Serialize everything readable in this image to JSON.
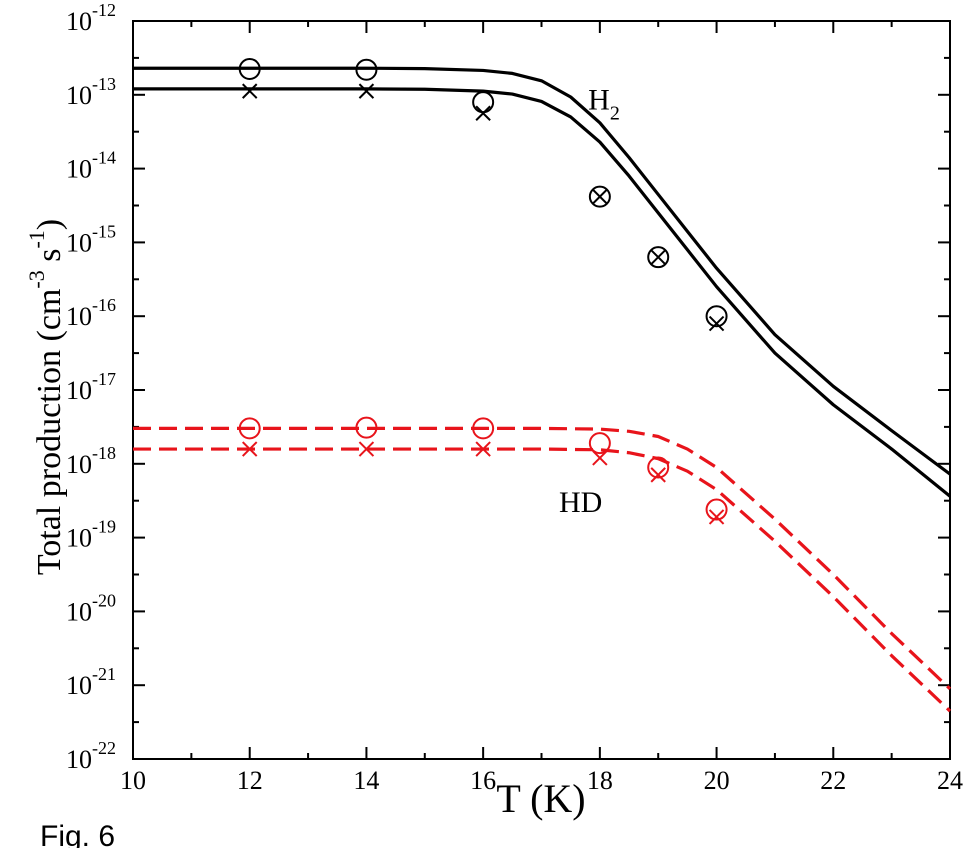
{
  "figure_label": "Fig. 6",
  "chart_data": {
    "type": "line",
    "xlabel": "T (K)",
    "ylabel": {
      "prefix": "Total production (cm",
      "exp1": "-3",
      "mid": " s",
      "exp2": "-1",
      "suffix": ")"
    },
    "x_ticks": [
      "10",
      "12",
      "14",
      "16",
      "18",
      "20",
      "22",
      "24"
    ],
    "xlim": [
      10,
      24
    ],
    "y_scale": "log",
    "y_ticks": [
      {
        "base": "10",
        "exp": "-12",
        "value": -12
      },
      {
        "base": "10",
        "exp": "-13",
        "value": -13
      },
      {
        "base": "10",
        "exp": "-14",
        "value": -14
      },
      {
        "base": "10",
        "exp": "-15",
        "value": -15
      },
      {
        "base": "10",
        "exp": "-16",
        "value": -16
      },
      {
        "base": "10",
        "exp": "-17",
        "value": -17
      },
      {
        "base": "10",
        "exp": "-18",
        "value": -18
      },
      {
        "base": "10",
        "exp": "-19",
        "value": -19
      },
      {
        "base": "10",
        "exp": "-20",
        "value": -20
      },
      {
        "base": "10",
        "exp": "-21",
        "value": -21
      },
      {
        "base": "10",
        "exp": "-22",
        "value": -22
      }
    ],
    "ylim_log10": [
      -22,
      -12
    ],
    "grid": false,
    "annotations": [
      {
        "text": "H",
        "sub": "2",
        "x": 17.8,
        "y_log10": -13.2
      },
      {
        "text": "HD",
        "sub": "",
        "x": 17.3,
        "y_log10": -18.65
      }
    ],
    "curves": [
      {
        "style": "solid",
        "color": "#000000",
        "x": [
          10,
          12,
          14,
          15,
          16,
          16.5,
          17,
          17.5,
          18,
          18.5,
          19,
          19.5,
          20,
          21,
          22,
          23,
          24
        ],
        "y_log10": [
          -12.64,
          -12.64,
          -12.64,
          -12.645,
          -12.67,
          -12.71,
          -12.81,
          -13.03,
          -13.38,
          -13.85,
          -14.35,
          -14.85,
          -15.35,
          -16.25,
          -16.95,
          -17.55,
          -18.14
        ]
      },
      {
        "style": "solid",
        "color": "#000000",
        "x": [
          10,
          12,
          14,
          15,
          16,
          16.5,
          17,
          17.5,
          18,
          18.5,
          19,
          19.5,
          20,
          21,
          22,
          23,
          24
        ],
        "y_log10": [
          -12.92,
          -12.92,
          -12.92,
          -12.925,
          -12.95,
          -12.99,
          -13.09,
          -13.3,
          -13.64,
          -14.1,
          -14.6,
          -15.1,
          -15.6,
          -16.5,
          -17.2,
          -17.8,
          -18.44
        ]
      },
      {
        "style": "dashed",
        "color": "#e8141b",
        "x": [
          10,
          12,
          14,
          16,
          17,
          18,
          18.5,
          19,
          19.5,
          20,
          20.5,
          21,
          22,
          23,
          24
        ],
        "y_log10": [
          -17.52,
          -17.52,
          -17.52,
          -17.52,
          -17.52,
          -17.53,
          -17.56,
          -17.63,
          -17.8,
          -18.05,
          -18.4,
          -18.75,
          -19.5,
          -20.3,
          -21.05
        ]
      },
      {
        "style": "dashed",
        "color": "#e8141b",
        "x": [
          10,
          12,
          14,
          16,
          17,
          18,
          18.5,
          19,
          19.5,
          20,
          20.5,
          21,
          22,
          23,
          24
        ],
        "y_log10": [
          -17.8,
          -17.8,
          -17.8,
          -17.8,
          -17.8,
          -17.81,
          -17.85,
          -17.93,
          -18.1,
          -18.35,
          -18.7,
          -19.05,
          -19.8,
          -20.6,
          -21.35
        ]
      }
    ],
    "points": [
      {
        "marker": "circle",
        "color": "#000000",
        "x": [
          12,
          14,
          16,
          18,
          19,
          20
        ],
        "y_log10": [
          -12.65,
          -12.66,
          -13.1,
          -14.38,
          -15.2,
          -16.0
        ]
      },
      {
        "marker": "cross",
        "color": "#000000",
        "x": [
          12,
          14,
          16,
          18,
          19,
          20
        ],
        "y_log10": [
          -12.95,
          -12.95,
          -13.25,
          -14.38,
          -15.2,
          -16.1
        ]
      },
      {
        "marker": "circle",
        "color": "#e8141b",
        "x": [
          12,
          14,
          16,
          18,
          19,
          20
        ],
        "y_log10": [
          -17.52,
          -17.51,
          -17.52,
          -17.72,
          -18.05,
          -18.62
        ]
      },
      {
        "marker": "cross",
        "color": "#e8141b",
        "x": [
          12,
          14,
          16,
          18,
          19,
          20
        ],
        "y_log10": [
          -17.8,
          -17.8,
          -17.8,
          -17.92,
          -18.15,
          -18.72
        ]
      }
    ]
  }
}
